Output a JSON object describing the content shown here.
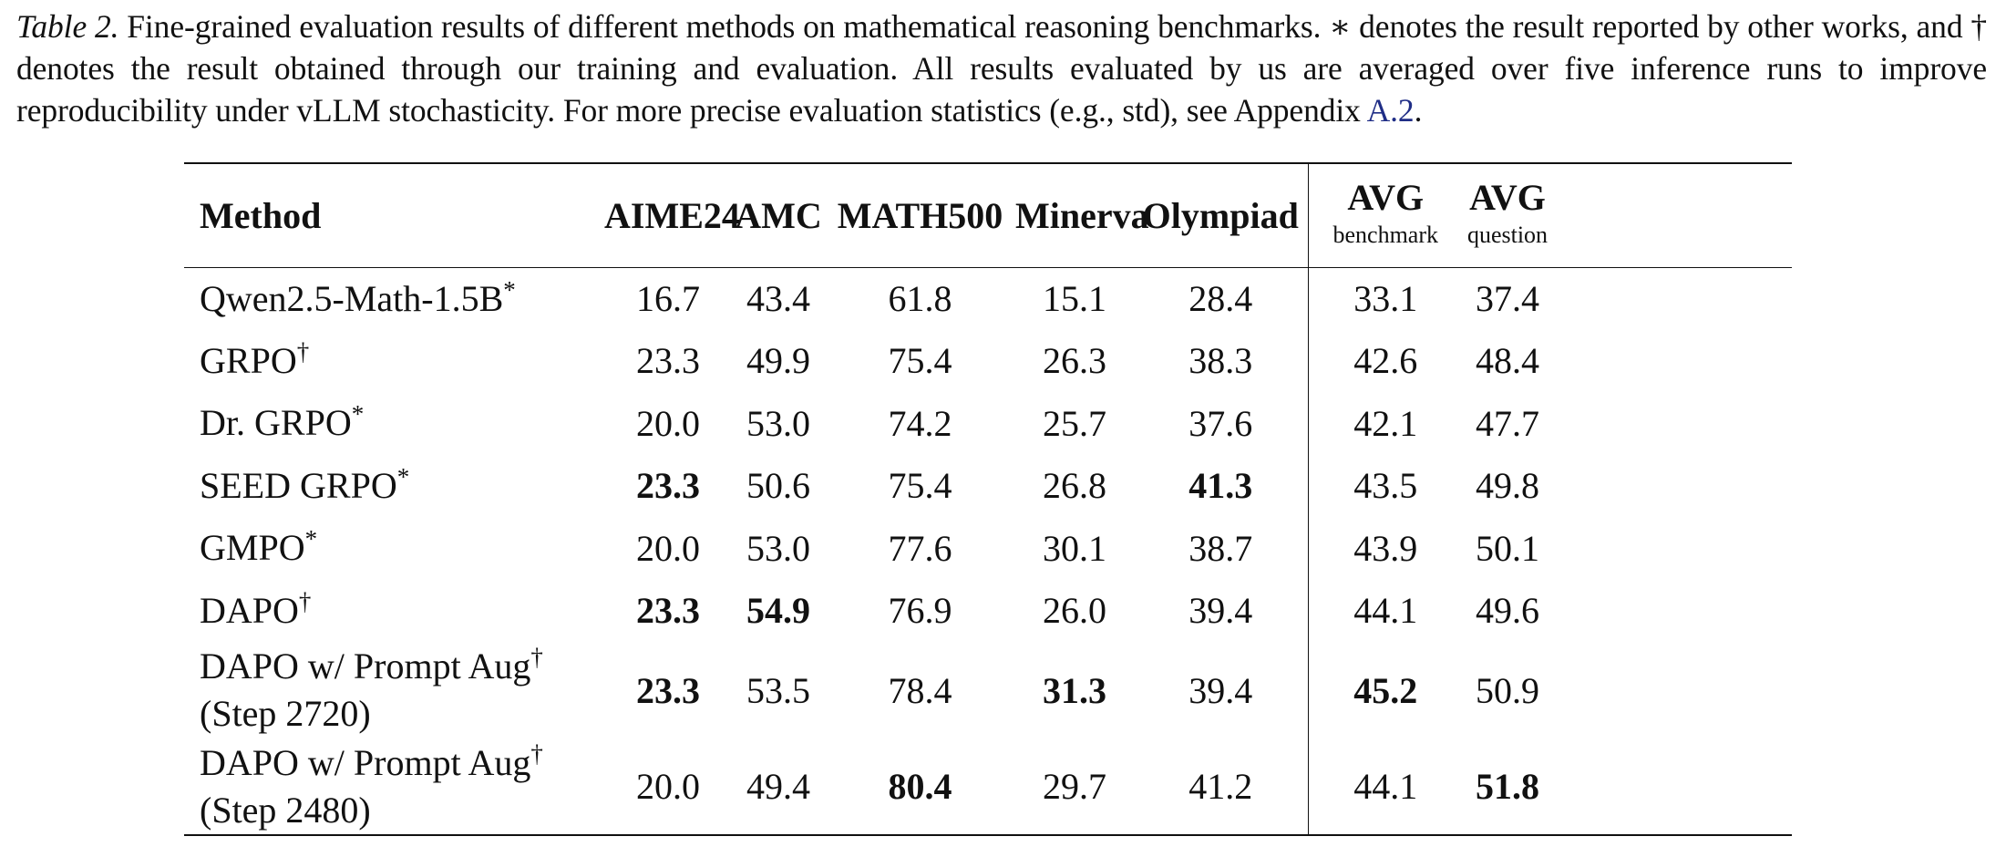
{
  "caption": {
    "label": "Table 2.",
    "text": "Fine-grained evaluation results of different methods on mathematical reasoning benchmarks. ∗ denotes the result reported by other works, and † denotes the result obtained through our training and evaluation. All results evaluated by us are averaged over five inference runs to improve reproducibility under vLLM stochasticity. For more precise evaluation statistics (e.g., std), see Appendix ",
    "ref": "A.2",
    "end": "."
  },
  "table": {
    "headers": {
      "method": "Method",
      "aime24": "AIME24",
      "amc": "AMC",
      "math500": "MATH500",
      "minerva": "Minerva",
      "olympiad": "Olympiad",
      "avg_label": "AVG",
      "avg_benchmark_sub": "benchmark",
      "avg_question_sub": "question"
    },
    "rows": [
      {
        "method": "Qwen2.5-Math-1.5B",
        "mark": "*",
        "aime24": "16.7",
        "amc": "43.4",
        "math500": "61.8",
        "minerva": "15.1",
        "olympiad": "28.4",
        "avg_benchmark": "33.1",
        "avg_question": "37.4"
      },
      {
        "method": "GRPO",
        "mark": "†",
        "aime24": "23.3",
        "amc": "49.9",
        "math500": "75.4",
        "minerva": "26.3",
        "olympiad": "38.3",
        "avg_benchmark": "42.6",
        "avg_question": "48.4"
      },
      {
        "method": "Dr. GRPO",
        "mark": "*",
        "aime24": "20.0",
        "amc": "53.0",
        "math500": "74.2",
        "minerva": "25.7",
        "olympiad": "37.6",
        "avg_benchmark": "42.1",
        "avg_question": "47.7"
      },
      {
        "method": "SEED GRPO",
        "mark": "*",
        "aime24": "23.3",
        "amc": "50.6",
        "math500": "75.4",
        "minerva": "26.8",
        "olympiad": "41.3",
        "avg_benchmark": "43.5",
        "avg_question": "49.8"
      },
      {
        "method": "GMPO",
        "mark": "*",
        "aime24": "20.0",
        "amc": "53.0",
        "math500": "77.6",
        "minerva": "30.1",
        "olympiad": "38.7",
        "avg_benchmark": "43.9",
        "avg_question": "50.1"
      },
      {
        "method": "DAPO",
        "mark": "†",
        "aime24": "23.3",
        "amc": "54.9",
        "math500": "76.9",
        "minerva": "26.0",
        "olympiad": "39.4",
        "avg_benchmark": "44.1",
        "avg_question": "49.6"
      },
      {
        "method": "DAPO w/ Prompt Aug",
        "mark": "†",
        "method_line2": "(Step 2720)",
        "aime24": "23.3",
        "amc": "53.5",
        "math500": "78.4",
        "minerva": "31.3",
        "olympiad": "39.4",
        "avg_benchmark": "45.2",
        "avg_question": "50.9"
      },
      {
        "method": "DAPO w/ Prompt Aug",
        "mark": "†",
        "method_line2": "(Step 2480)",
        "aime24": "20.0",
        "amc": "49.4",
        "math500": "80.4",
        "minerva": "29.7",
        "olympiad": "41.2",
        "avg_benchmark": "44.1",
        "avg_question": "51.8"
      }
    ]
  }
}
